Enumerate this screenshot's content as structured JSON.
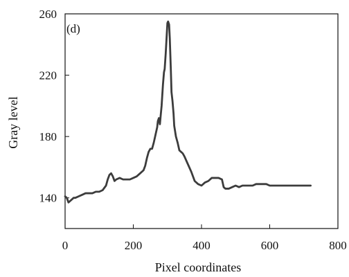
{
  "chart_data": {
    "type": "line",
    "panel_label": "(d)",
    "title": "",
    "xlabel": "Pixel coordinates",
    "ylabel": "Gray level",
    "xlim": [
      0,
      800
    ],
    "ylim": [
      120,
      260
    ],
    "xticks": [
      0,
      200,
      400,
      600,
      800
    ],
    "yticks": [
      140,
      180,
      220,
      260
    ],
    "grid": false,
    "series": [
      {
        "color": "#3c3c3c",
        "x": [
          0,
          5,
          10,
          15,
          20,
          25,
          30,
          40,
          50,
          60,
          70,
          80,
          90,
          100,
          110,
          120,
          125,
          130,
          135,
          140,
          145,
          150,
          160,
          170,
          180,
          190,
          200,
          210,
          220,
          230,
          235,
          240,
          245,
          250,
          255,
          260,
          265,
          270,
          272,
          275,
          278,
          280,
          283,
          285,
          287,
          290,
          292,
          295,
          298,
          300,
          302,
          305,
          307,
          310,
          312,
          315,
          318,
          320,
          325,
          330,
          335,
          340,
          345,
          350,
          360,
          370,
          380,
          390,
          400,
          410,
          420,
          430,
          440,
          450,
          460,
          465,
          470,
          480,
          490,
          500,
          510,
          520,
          530,
          540,
          550,
          560,
          570,
          580,
          590,
          600,
          620,
          640,
          660,
          680,
          700,
          720
        ],
        "y": [
          141,
          140,
          137,
          138,
          139,
          140,
          140,
          141,
          142,
          143,
          143,
          143,
          144,
          144,
          145,
          148,
          152,
          155,
          156,
          154,
          151,
          152,
          153,
          152,
          152,
          152,
          153,
          154,
          156,
          158,
          161,
          166,
          170,
          172,
          172,
          176,
          181,
          186,
          190,
          192,
          188,
          193,
          200,
          207,
          214,
          222,
          224,
          234,
          246,
          254,
          255,
          253,
          244,
          224,
          209,
          203,
          195,
          187,
          180,
          176,
          171,
          170,
          169,
          167,
          162,
          157,
          151,
          149,
          148,
          150,
          151,
          153,
          153,
          153,
          152,
          147,
          146,
          146,
          147,
          148,
          147,
          148,
          148,
          148,
          148,
          149,
          149,
          149,
          149,
          148,
          148,
          148,
          148,
          148,
          148,
          148
        ]
      }
    ]
  }
}
